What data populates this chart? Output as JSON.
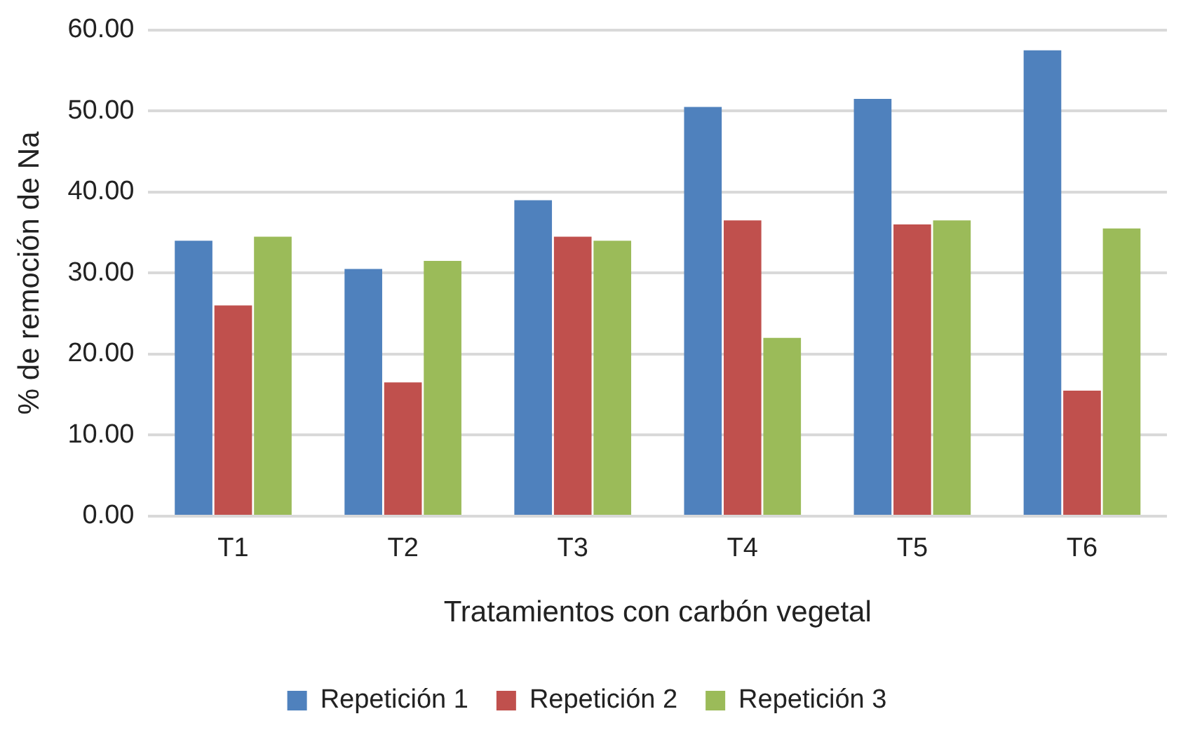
{
  "chart_data": {
    "type": "bar",
    "xlabel": "Tratamientos con carbón vegetal",
    "ylabel": "% de remoción de Na",
    "categories": [
      "T1",
      "T2",
      "T3",
      "T4",
      "T5",
      "T6"
    ],
    "series": [
      {
        "name": "Repetición 1",
        "color": "#4f81bd",
        "values": [
          34,
          30.5,
          39,
          50.5,
          51.5,
          57.5
        ]
      },
      {
        "name": "Repetición 2",
        "color": "#c0504d",
        "values": [
          26,
          16.5,
          34.5,
          36.5,
          36,
          15.5
        ]
      },
      {
        "name": "Repetición 3",
        "color": "#9bbb59",
        "values": [
          34.5,
          31.5,
          34,
          22,
          36.5,
          35.5
        ]
      }
    ],
    "ylim": [
      0,
      60
    ],
    "yticks": [
      {
        "value": 0,
        "label": "0.00"
      },
      {
        "value": 10,
        "label": "10.00"
      },
      {
        "value": 20,
        "label": "20.00"
      },
      {
        "value": 30,
        "label": "30.00"
      },
      {
        "value": 40,
        "label": "40.00"
      },
      {
        "value": 50,
        "label": "50.00"
      },
      {
        "value": 60,
        "label": "60.00"
      }
    ],
    "grid": "y",
    "legend": "bottom"
  }
}
